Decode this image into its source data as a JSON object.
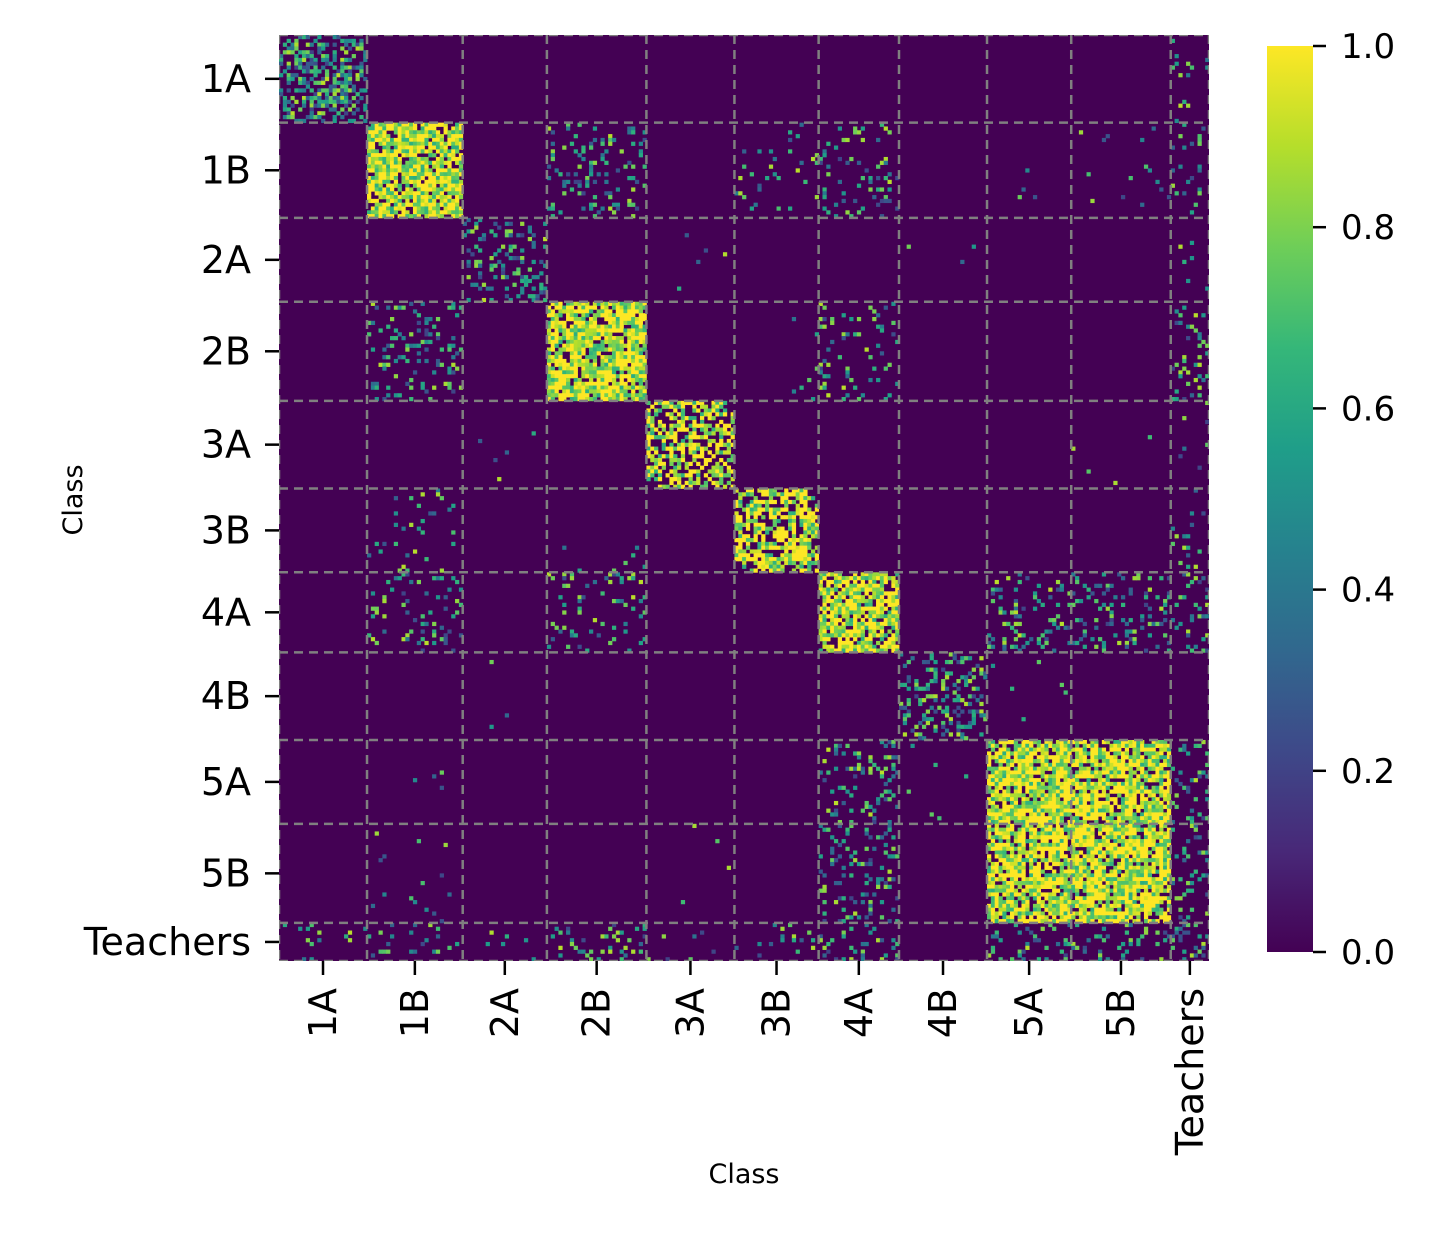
{
  "chart_data": {
    "type": "heatmap",
    "title": "",
    "xlabel": "Class",
    "ylabel": "Class",
    "categories": [
      "1A",
      "1B",
      "2A",
      "2B",
      "3A",
      "3B",
      "4A",
      "4B",
      "5A",
      "5B",
      "Teachers"
    ],
    "group_sizes": [
      23,
      25,
      22,
      26,
      23,
      22,
      21,
      23,
      22,
      26,
      10
    ],
    "block_density": [
      [
        0.45,
        0.0,
        0.0,
        0.0,
        0.0,
        0.0,
        0.0,
        0.0,
        0.0,
        0.0,
        0.05
      ],
      [
        0.0,
        0.85,
        0.0,
        0.18,
        0.0,
        0.06,
        0.12,
        0.0,
        0.01,
        0.02,
        0.12
      ],
      [
        0.0,
        0.01,
        0.22,
        0.0,
        0.01,
        0.0,
        0.0,
        0.01,
        0.0,
        0.0,
        0.04
      ],
      [
        0.0,
        0.18,
        0.0,
        0.85,
        0.0,
        0.02,
        0.12,
        0.0,
        0.0,
        0.0,
        0.12
      ],
      [
        0.0,
        0.0,
        0.0,
        0.0,
        0.6,
        0.0,
        0.0,
        0.0,
        0.0,
        0.01,
        0.02
      ],
      [
        0.0,
        0.06,
        0.0,
        0.03,
        0.0,
        0.65,
        0.0,
        0.0,
        0.0,
        0.0,
        0.06
      ],
      [
        0.0,
        0.12,
        0.0,
        0.12,
        0.0,
        0.0,
        0.85,
        0.0,
        0.18,
        0.18,
        0.15
      ],
      [
        0.01,
        0.0,
        0.03,
        0.0,
        0.0,
        0.0,
        0.0,
        0.3,
        0.01,
        0.0,
        0.0
      ],
      [
        0.0,
        0.01,
        0.0,
        0.0,
        0.0,
        0.0,
        0.18,
        0.0,
        0.85,
        0.8,
        0.15
      ],
      [
        0.0,
        0.01,
        0.0,
        0.0,
        0.0,
        0.0,
        0.15,
        0.0,
        0.8,
        0.85,
        0.15
      ],
      [
        0.06,
        0.12,
        0.06,
        0.12,
        0.04,
        0.06,
        0.12,
        0.0,
        0.15,
        0.15,
        0.3
      ]
    ],
    "colorbar": {
      "min": 0.0,
      "max": 1.0,
      "ticks": [
        "0.0",
        "0.2",
        "0.4",
        "0.6",
        "0.8",
        "1.0"
      ],
      "colormap": "viridis"
    },
    "colors": {
      "background": "#440154",
      "group_divider": "#808080",
      "colormap_stops": [
        "#440154",
        "#482878",
        "#3e4989",
        "#31688e",
        "#26828e",
        "#1f9e89",
        "#35b779",
        "#6ece58",
        "#b5de2b",
        "#fde725"
      ]
    },
    "grid": false,
    "legend": "colorbar-right"
  }
}
